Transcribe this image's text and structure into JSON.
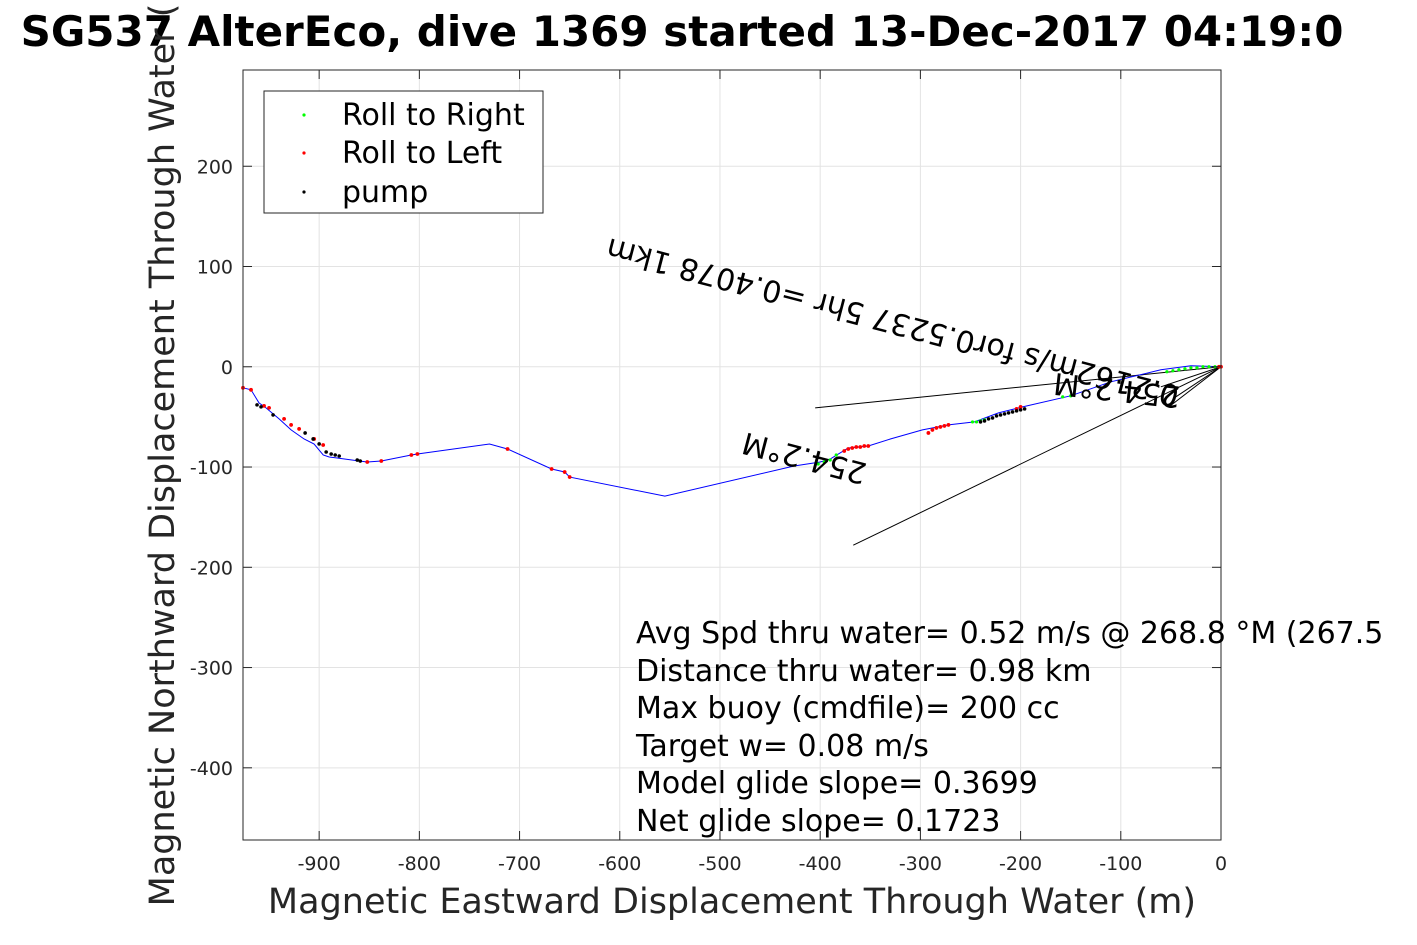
{
  "chart_data": {
    "type": "line",
    "title": "SG537 AlterEco, dive 1369 started 13-Dec-2017 04:19:0",
    "xlabel": "Magnetic Eastward Displacement Through Water (m)",
    "ylabel": "Magnetic Northward Displacement Through Water (",
    "xlim": [
      -976,
      0
    ],
    "ylim": [
      -472,
      296
    ],
    "x_ticks": [
      -900,
      -800,
      -700,
      -600,
      -500,
      -400,
      -300,
      -200,
      -100,
      0
    ],
    "x_tick_labels": [
      "-900",
      "-800",
      "-700",
      "-600",
      "-500",
      "-400",
      "-300",
      "-200",
      "-100",
      "0"
    ],
    "y_ticks": [
      -400,
      -300,
      -200,
      -100,
      0,
      100,
      200
    ],
    "y_tick_labels": [
      "-400",
      "-300",
      "-200",
      "-100",
      "0",
      "100",
      "200"
    ],
    "grid": true,
    "legend_position": "top-left",
    "legend": [
      {
        "label": "Roll to Right",
        "color": "#00ff00"
      },
      {
        "label": "Roll to Left",
        "color": "#ff0000"
      },
      {
        "label": "pump",
        "color": "#000000"
      }
    ],
    "track": {
      "color": "#0000ff",
      "x": [
        -976,
        -968,
        -960,
        -953,
        -940,
        -928,
        -915,
        -905,
        -896,
        -890,
        -882,
        -860,
        -852,
        -838,
        -808,
        -802,
        -730,
        -712,
        -668,
        -655,
        -650,
        -555,
        -426,
        -400,
        -390,
        -372,
        -352,
        -330,
        -298,
        -272,
        -246,
        -222,
        -210,
        -198,
        -150,
        -110,
        -60,
        -30,
        0
      ],
      "y": [
        -21,
        -23,
        -36,
        -41,
        -52,
        -63,
        -72,
        -77,
        -88,
        -90,
        -91,
        -94,
        -95,
        -94,
        -88,
        -87,
        -77,
        -82,
        -102,
        -105,
        -110,
        -129,
        -99,
        -95,
        -92,
        -81,
        -79,
        -72,
        -63,
        -58,
        -55,
        -46,
        -43,
        -40,
        -29,
        -15,
        -3,
        1,
        0
      ]
    },
    "roll_right": {
      "color": "#00ff00",
      "x": [
        -402,
        -396,
        -390,
        -384,
        -248,
        -244,
        -240,
        -236,
        -158,
        -150,
        -54,
        -48,
        -42,
        -36,
        -30,
        -24,
        -18,
        -12,
        -6
      ],
      "y": [
        -97,
        -95,
        -93,
        -88,
        -55,
        -55,
        -54,
        -53,
        -30,
        -29,
        -5,
        -4,
        -3,
        -2,
        -1,
        -1,
        0,
        0,
        0
      ]
    },
    "roll_left": {
      "color": "#ff0000",
      "x": [
        -976,
        -968,
        -955,
        -950,
        -935,
        -928,
        -920,
        -905,
        -896,
        -852,
        -838,
        -808,
        -802,
        -712,
        -668,
        -655,
        -650,
        -376,
        -372,
        -368,
        -364,
        -360,
        -356,
        -352,
        -292,
        -288,
        -284,
        -280,
        -276,
        -272,
        -204,
        -200,
        -2,
        0
      ],
      "y": [
        -21,
        -23,
        -39,
        -41,
        -52,
        -58,
        -62,
        -72,
        -78,
        -95,
        -94,
        -88,
        -87,
        -82,
        -102,
        -105,
        -110,
        -84,
        -82,
        -81,
        -80,
        -80,
        -79,
        -79,
        -66,
        -63,
        -61,
        -60,
        -59,
        -58,
        -42,
        -40,
        0,
        0
      ],
      "size": 3
    },
    "pump": {
      "color": "#000000",
      "x": [
        -962,
        -958,
        -946,
        -914,
        -906,
        -900,
        -893,
        -888,
        -884,
        -880,
        -862,
        -859,
        -240,
        -236,
        -232,
        -228,
        -224,
        -220,
        -216,
        -212,
        -208,
        -204,
        -200,
        -196
      ],
      "y": [
        -38,
        -40,
        -48,
        -66,
        -72,
        -77,
        -85,
        -87,
        -88,
        -89,
        -93,
        -94,
        -55,
        -54,
        -52,
        -51,
        -49,
        -48,
        -47,
        -46,
        -45,
        -44,
        -43,
        -42
      ]
    },
    "fan_lines": {
      "color": "#000000",
      "segments": [
        {
          "x": [
            0,
            -405
          ],
          "y": [
            0,
            -41
          ]
        },
        {
          "x": [
            0,
            -367
          ],
          "y": [
            0,
            -178
          ]
        },
        {
          "x": [
            0,
            -60
          ],
          "y": [
            0,
            -20
          ]
        },
        {
          "x": [
            0,
            -45
          ],
          "y": [
            0,
            -30
          ]
        },
        {
          "x": [
            0,
            -52
          ],
          "y": [
            0,
            -40
          ]
        }
      ]
    },
    "annotations": [
      {
        "text": "254.2°M",
        "x": -40,
        "y": -20,
        "angle": 6.3
      },
      {
        "text": "0.2162m/s for0.5237 5hr =0.4078 1km",
        "x": -40,
        "y": -20,
        "angle": 14.6
      },
      {
        "text": "254.2°M",
        "x": -352,
        "y": -97,
        "angle": 14.6
      }
    ],
    "stats": [
      "Avg Spd thru water=  0.52 m/s @ 268.8 °M (267.5",
      "Distance thru water=  0.98 km",
      "Max buoy (cmdfile)= 200 cc",
      "Target w= 0.08 m/s",
      "Model glide slope= 0.3699",
      "Net glide slope= 0.1723"
    ]
  }
}
